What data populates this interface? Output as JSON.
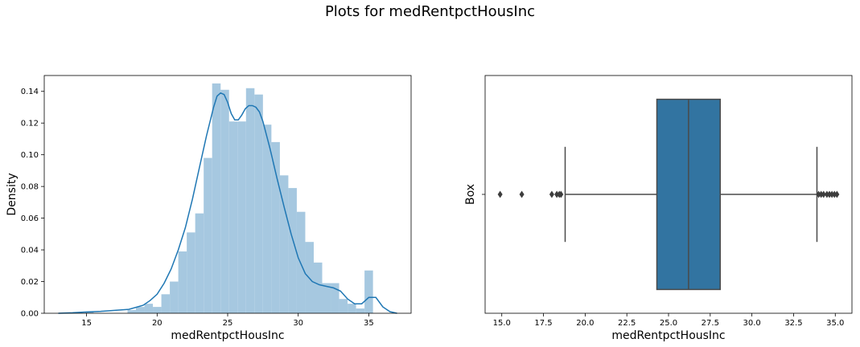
{
  "suptitle": "Plots for medRentpctHousInc",
  "colors": {
    "hist_fill": "#a6c8e0",
    "kde_line": "#1f77b4",
    "box_fill": "#3274a1",
    "box_line": "#4a4a4a"
  },
  "chart_data": [
    {
      "type": "histogram",
      "subtype": "distplot-with-kde",
      "xlabel": "medRentpctHousInc",
      "ylabel": "Density",
      "xlim": [
        12.0,
        38.0
      ],
      "ylim": [
        0,
        0.15
      ],
      "xticks": [
        15,
        20,
        25,
        30,
        35
      ],
      "yticks": [
        0.0,
        0.02,
        0.04,
        0.06,
        0.08,
        0.1,
        0.12,
        0.14
      ],
      "bin_edges": [
        14.9,
        15.5,
        16.1,
        16.7,
        17.3,
        17.9,
        18.5,
        19.1,
        19.7,
        20.3,
        20.9,
        21.5,
        22.1,
        22.7,
        23.3,
        23.9,
        24.5,
        25.1,
        25.7,
        26.3,
        26.9,
        27.5,
        28.1,
        28.7,
        29.3,
        29.9,
        30.5,
        31.1,
        31.7,
        32.3,
        32.9,
        33.5,
        34.1,
        34.7,
        35.3
      ],
      "densities": [
        0.001,
        0.0,
        0.0,
        0.0,
        0.0,
        0.002,
        0.004,
        0.006,
        0.004,
        0.012,
        0.02,
        0.039,
        0.051,
        0.063,
        0.098,
        0.145,
        0.141,
        0.121,
        0.121,
        0.142,
        0.138,
        0.119,
        0.108,
        0.087,
        0.079,
        0.064,
        0.045,
        0.032,
        0.019,
        0.019,
        0.009,
        0.006,
        0.003,
        0.027
      ],
      "kde_x": [
        13.0,
        14.0,
        15.0,
        16.0,
        17.0,
        18.0,
        19.0,
        19.5,
        20.0,
        20.5,
        21.0,
        21.5,
        22.0,
        22.5,
        23.0,
        23.5,
        24.0,
        24.25,
        24.5,
        24.75,
        25.0,
        25.25,
        25.5,
        25.75,
        26.0,
        26.25,
        26.5,
        26.75,
        27.0,
        27.25,
        27.5,
        28.0,
        28.5,
        29.0,
        29.5,
        30.0,
        30.5,
        31.0,
        31.5,
        32.0,
        32.5,
        33.0,
        33.5,
        34.0,
        34.5,
        35.0,
        35.5,
        36.0,
        36.5,
        37.0
      ],
      "kde_y": [
        0.0,
        0.0003,
        0.0008,
        0.0012,
        0.0018,
        0.0025,
        0.005,
        0.008,
        0.012,
        0.019,
        0.028,
        0.04,
        0.054,
        0.072,
        0.092,
        0.112,
        0.13,
        0.137,
        0.139,
        0.138,
        0.133,
        0.126,
        0.122,
        0.122,
        0.125,
        0.129,
        0.131,
        0.131,
        0.13,
        0.127,
        0.121,
        0.104,
        0.085,
        0.067,
        0.05,
        0.035,
        0.025,
        0.02,
        0.018,
        0.017,
        0.016,
        0.014,
        0.009,
        0.006,
        0.006,
        0.01,
        0.01,
        0.004,
        0.001,
        0.0
      ]
    },
    {
      "type": "box",
      "xlabel": "medRentpctHousInc",
      "ylabel": "Box",
      "xlim": [
        14.0,
        36.0
      ],
      "xticks": [
        "15.0",
        "17.5",
        "20.0",
        "22.5",
        "25.0",
        "27.5",
        "30.0",
        "32.5",
        "35.0"
      ],
      "whisker_low": 18.8,
      "q1": 24.3,
      "median": 26.2,
      "q3": 28.1,
      "whisker_high": 33.9,
      "outliers": [
        14.9,
        16.2,
        18.0,
        18.3,
        18.45,
        18.55,
        34.0,
        34.15,
        34.3,
        34.5,
        34.65,
        34.8,
        34.95,
        35.1
      ]
    }
  ]
}
